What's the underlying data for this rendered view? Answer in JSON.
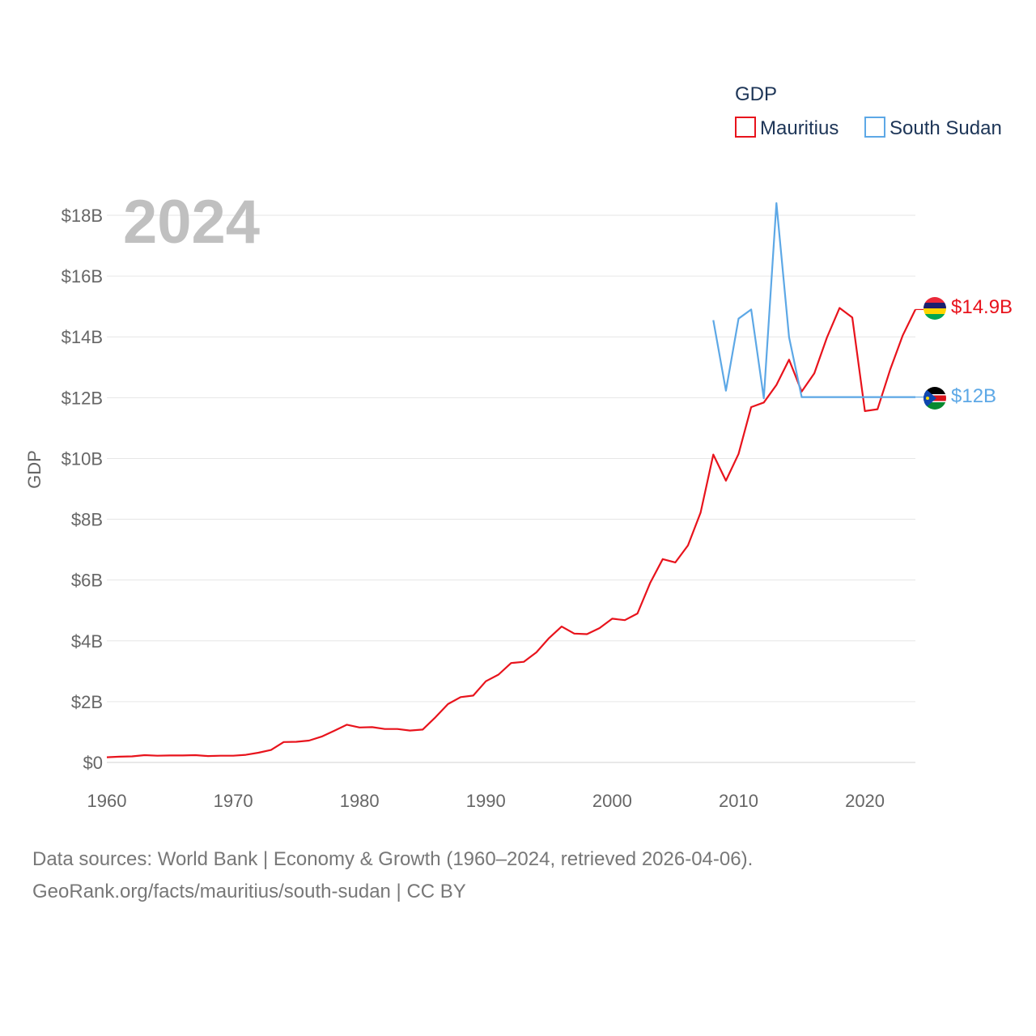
{
  "legend": {
    "title": "GDP",
    "entries": [
      {
        "name": "Mauritius",
        "color": "#e8131c"
      },
      {
        "name": "South Sudan",
        "color": "#5da8e6"
      }
    ]
  },
  "year_label": "2024",
  "source": {
    "line1": "Data sources: World Bank | Economy & Growth (1960–2024, retrieved 2026-04-06).",
    "line2": "GeoRank.org/facts/mauritius/south-sudan | CC BY"
  },
  "chart_data": {
    "type": "line",
    "title": "",
    "xlabel": "",
    "ylabel": "GDP",
    "xlim": [
      1960,
      2024
    ],
    "ylim": [
      0,
      18
    ],
    "x_ticks": [
      1960,
      1970,
      1980,
      1990,
      2000,
      2010,
      2020
    ],
    "y_ticks": [
      0,
      2,
      4,
      6,
      8,
      10,
      12,
      14,
      16,
      18
    ],
    "y_tick_labels": [
      "$0",
      "$2B",
      "$4B",
      "$6B",
      "$8B",
      "$10B",
      "$12B",
      "$14B",
      "$16B",
      "$18B"
    ],
    "grid": true,
    "value_unit": "billion USD",
    "series": [
      {
        "name": "Mauritius",
        "color": "#e8131c",
        "end_label": "$14.9B",
        "x": [
          1960,
          1961,
          1962,
          1963,
          1964,
          1965,
          1966,
          1967,
          1968,
          1969,
          1970,
          1971,
          1972,
          1973,
          1974,
          1975,
          1976,
          1977,
          1978,
          1979,
          1980,
          1981,
          1982,
          1983,
          1984,
          1985,
          1986,
          1987,
          1988,
          1989,
          1990,
          1991,
          1992,
          1993,
          1994,
          1995,
          1996,
          1997,
          1998,
          1999,
          2000,
          2001,
          2002,
          2003,
          2004,
          2005,
          2006,
          2007,
          2008,
          2009,
          2010,
          2011,
          2012,
          2013,
          2014,
          2015,
          2016,
          2017,
          2018,
          2019,
          2020,
          2021,
          2022,
          2023,
          2024
        ],
        "values": [
          0.17,
          0.19,
          0.2,
          0.24,
          0.22,
          0.23,
          0.23,
          0.24,
          0.21,
          0.22,
          0.22,
          0.25,
          0.32,
          0.41,
          0.67,
          0.68,
          0.72,
          0.85,
          1.04,
          1.24,
          1.15,
          1.16,
          1.1,
          1.1,
          1.05,
          1.08,
          1.48,
          1.92,
          2.15,
          2.2,
          2.67,
          2.89,
          3.27,
          3.31,
          3.62,
          4.09,
          4.47,
          4.24,
          4.22,
          4.42,
          4.73,
          4.68,
          4.9,
          5.9,
          6.69,
          6.58,
          7.14,
          8.22,
          10.13,
          9.27,
          10.15,
          11.69,
          11.84,
          12.42,
          13.25,
          12.2,
          12.8,
          13.98,
          14.95,
          14.64,
          11.56,
          11.62,
          12.92,
          14.05,
          14.9
        ]
      },
      {
        "name": "South Sudan",
        "color": "#5da8e6",
        "end_label": "$12B",
        "x": [
          2008,
          2009,
          2010,
          2011,
          2012,
          2013,
          2014,
          2015,
          2016,
          2017,
          2018,
          2019,
          2020,
          2021,
          2022,
          2023,
          2024
        ],
        "values": [
          14.55,
          12.23,
          14.6,
          14.9,
          11.98,
          18.4,
          13.99,
          12.02,
          12.02,
          12.02,
          12.02,
          12.02,
          12.02,
          12.02,
          12.02,
          12.02,
          12.02
        ]
      }
    ]
  }
}
